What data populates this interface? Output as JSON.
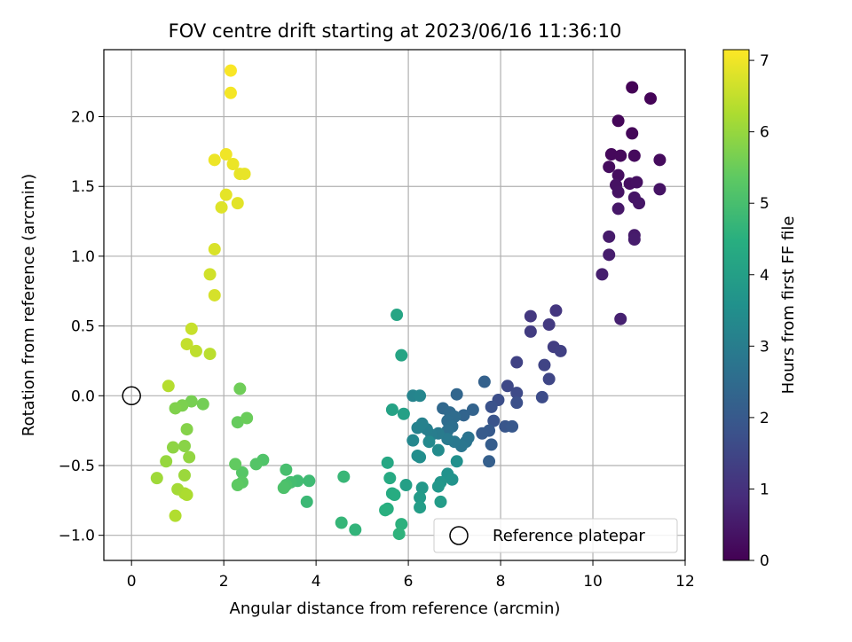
{
  "chart_data": {
    "type": "scatter",
    "title": "FOV centre drift starting at 2023/06/16 11:36:10",
    "xlabel": "Angular distance from reference (arcmin)",
    "ylabel": "Rotation from reference (arcmin)",
    "xlim": [
      -0.6,
      12.0
    ],
    "ylim": [
      -1.18,
      2.48
    ],
    "xticks": [
      0,
      2,
      4,
      6,
      8,
      10,
      12
    ],
    "yticks": [
      -1.0,
      -0.5,
      0.0,
      0.5,
      1.0,
      1.5,
      2.0
    ],
    "xtick_labels": [
      "0",
      "2",
      "4",
      "6",
      "8",
      "10",
      "12"
    ],
    "ytick_labels": [
      "−1.0",
      "−0.5",
      "0.0",
      "0.5",
      "1.0",
      "1.5",
      "2.0"
    ],
    "grid": true,
    "colormap": "viridis",
    "colorbar": {
      "label": "Hours from first FF file",
      "min": 0,
      "max": 7.15,
      "ticks": [
        0,
        1,
        2,
        3,
        4,
        5,
        6,
        7
      ],
      "tick_labels": [
        "0",
        "1",
        "2",
        "3",
        "4",
        "5",
        "6",
        "7"
      ]
    },
    "legend": {
      "position": "lower-right",
      "entries": [
        "Reference platepar"
      ]
    },
    "reference_point": {
      "x": 0,
      "y": 0
    },
    "points": [
      {
        "x": 10.85,
        "y": 2.21,
        "h": 0.05
      },
      {
        "x": 11.25,
        "y": 2.13,
        "h": 0.07
      },
      {
        "x": 10.55,
        "y": 1.97,
        "h": 0.1
      },
      {
        "x": 10.85,
        "y": 1.88,
        "h": 0.12
      },
      {
        "x": 10.4,
        "y": 1.73,
        "h": 0.15
      },
      {
        "x": 10.6,
        "y": 1.72,
        "h": 0.17
      },
      {
        "x": 10.9,
        "y": 1.72,
        "h": 0.18
      },
      {
        "x": 11.45,
        "y": 1.69,
        "h": 0.2
      },
      {
        "x": 10.35,
        "y": 1.64,
        "h": 0.22
      },
      {
        "x": 10.55,
        "y": 1.58,
        "h": 0.25
      },
      {
        "x": 10.8,
        "y": 1.52,
        "h": 0.27
      },
      {
        "x": 10.95,
        "y": 1.53,
        "h": 0.3
      },
      {
        "x": 10.5,
        "y": 1.51,
        "h": 0.32
      },
      {
        "x": 10.55,
        "y": 1.46,
        "h": 0.35
      },
      {
        "x": 11.45,
        "y": 1.48,
        "h": 0.37
      },
      {
        "x": 10.9,
        "y": 1.42,
        "h": 0.4
      },
      {
        "x": 11.0,
        "y": 1.38,
        "h": 0.42
      },
      {
        "x": 10.55,
        "y": 1.34,
        "h": 0.45
      },
      {
        "x": 10.9,
        "y": 1.15,
        "h": 0.5
      },
      {
        "x": 10.35,
        "y": 1.14,
        "h": 0.52
      },
      {
        "x": 10.9,
        "y": 1.12,
        "h": 0.55
      },
      {
        "x": 10.35,
        "y": 1.01,
        "h": 0.57
      },
      {
        "x": 10.2,
        "y": 0.87,
        "h": 0.6
      },
      {
        "x": 10.6,
        "y": 0.55,
        "h": 0.65
      },
      {
        "x": 9.2,
        "y": 0.61,
        "h": 1.1
      },
      {
        "x": 8.65,
        "y": 0.57,
        "h": 1.15
      },
      {
        "x": 9.05,
        "y": 0.51,
        "h": 1.2
      },
      {
        "x": 8.65,
        "y": 0.46,
        "h": 1.25
      },
      {
        "x": 9.15,
        "y": 0.35,
        "h": 1.3
      },
      {
        "x": 9.3,
        "y": 0.32,
        "h": 1.35
      },
      {
        "x": 8.35,
        "y": 0.24,
        "h": 1.4
      },
      {
        "x": 8.95,
        "y": 0.22,
        "h": 1.45
      },
      {
        "x": 9.05,
        "y": 0.12,
        "h": 1.5
      },
      {
        "x": 8.15,
        "y": 0.07,
        "h": 1.55
      },
      {
        "x": 8.35,
        "y": 0.02,
        "h": 1.6
      },
      {
        "x": 8.9,
        "y": -0.01,
        "h": 1.65
      },
      {
        "x": 7.95,
        "y": -0.03,
        "h": 1.7
      },
      {
        "x": 8.35,
        "y": -0.05,
        "h": 1.75
      },
      {
        "x": 7.8,
        "y": -0.08,
        "h": 1.8
      },
      {
        "x": 7.85,
        "y": -0.18,
        "h": 1.85
      },
      {
        "x": 8.1,
        "y": -0.22,
        "h": 1.9
      },
      {
        "x": 8.25,
        "y": -0.22,
        "h": 1.95
      },
      {
        "x": 7.75,
        "y": -0.25,
        "h": 2.0
      },
      {
        "x": 7.6,
        "y": -0.27,
        "h": 2.05
      },
      {
        "x": 7.8,
        "y": -0.35,
        "h": 2.1
      },
      {
        "x": 7.75,
        "y": -0.47,
        "h": 2.15
      },
      {
        "x": 7.65,
        "y": 0.1,
        "h": 2.2
      },
      {
        "x": 7.4,
        "y": -0.1,
        "h": 2.25
      },
      {
        "x": 7.2,
        "y": -0.14,
        "h": 2.3
      },
      {
        "x": 7.05,
        "y": 0.01,
        "h": 2.35
      },
      {
        "x": 6.75,
        "y": -0.09,
        "h": 2.4
      },
      {
        "x": 6.9,
        "y": -0.12,
        "h": 2.45
      },
      {
        "x": 7.0,
        "y": -0.15,
        "h": 2.5
      },
      {
        "x": 6.85,
        "y": -0.18,
        "h": 2.55
      },
      {
        "x": 6.95,
        "y": -0.22,
        "h": 2.6
      },
      {
        "x": 6.85,
        "y": -0.25,
        "h": 2.65
      },
      {
        "x": 7.3,
        "y": -0.3,
        "h": 2.7
      },
      {
        "x": 7.25,
        "y": -0.33,
        "h": 2.75
      },
      {
        "x": 7.15,
        "y": -0.36,
        "h": 2.8
      },
      {
        "x": 7.0,
        "y": -0.33,
        "h": 2.85
      },
      {
        "x": 6.85,
        "y": -0.31,
        "h": 2.9
      },
      {
        "x": 6.65,
        "y": -0.27,
        "h": 2.95
      },
      {
        "x": 6.5,
        "y": -0.28,
        "h": 3.0
      },
      {
        "x": 6.4,
        "y": -0.24,
        "h": 3.05
      },
      {
        "x": 6.3,
        "y": -0.2,
        "h": 3.1
      },
      {
        "x": 6.2,
        "y": -0.23,
        "h": 3.15
      },
      {
        "x": 6.1,
        "y": 0.0,
        "h": 3.2
      },
      {
        "x": 6.25,
        "y": 0.0,
        "h": 3.25
      },
      {
        "x": 6.1,
        "y": -0.32,
        "h": 3.3
      },
      {
        "x": 6.45,
        "y": -0.33,
        "h": 3.35
      },
      {
        "x": 6.65,
        "y": -0.39,
        "h": 3.4
      },
      {
        "x": 6.2,
        "y": -0.43,
        "h": 3.45
      },
      {
        "x": 6.25,
        "y": -0.44,
        "h": 3.5
      },
      {
        "x": 7.05,
        "y": -0.47,
        "h": 3.55
      },
      {
        "x": 6.85,
        "y": -0.56,
        "h": 3.6
      },
      {
        "x": 6.95,
        "y": -0.6,
        "h": 3.65
      },
      {
        "x": 6.7,
        "y": -0.62,
        "h": 3.7
      },
      {
        "x": 6.65,
        "y": -0.65,
        "h": 3.75
      },
      {
        "x": 6.3,
        "y": -0.66,
        "h": 3.8
      },
      {
        "x": 6.25,
        "y": -0.73,
        "h": 3.85
      },
      {
        "x": 6.7,
        "y": -0.76,
        "h": 3.9
      },
      {
        "x": 6.25,
        "y": -0.8,
        "h": 3.95
      },
      {
        "x": 5.95,
        "y": -0.64,
        "h": 4.0
      },
      {
        "x": 5.9,
        "y": -0.13,
        "h": 4.05
      },
      {
        "x": 5.65,
        "y": -0.1,
        "h": 4.1
      },
      {
        "x": 5.85,
        "y": 0.29,
        "h": 4.15
      },
      {
        "x": 5.75,
        "y": 0.58,
        "h": 4.2
      },
      {
        "x": 5.55,
        "y": -0.48,
        "h": 4.25
      },
      {
        "x": 5.6,
        "y": -0.59,
        "h": 4.3
      },
      {
        "x": 5.65,
        "y": -0.7,
        "h": 4.35
      },
      {
        "x": 5.7,
        "y": -0.71,
        "h": 4.4
      },
      {
        "x": 5.55,
        "y": -0.81,
        "h": 4.45
      },
      {
        "x": 5.5,
        "y": -0.82,
        "h": 4.5
      },
      {
        "x": 5.85,
        "y": -0.92,
        "h": 4.55
      },
      {
        "x": 5.8,
        "y": -0.99,
        "h": 4.6
      },
      {
        "x": 4.85,
        "y": -0.96,
        "h": 4.65
      },
      {
        "x": 4.55,
        "y": -0.91,
        "h": 4.7
      },
      {
        "x": 4.6,
        "y": -0.58,
        "h": 4.75
      },
      {
        "x": 3.8,
        "y": -0.76,
        "h": 4.8
      },
      {
        "x": 3.85,
        "y": -0.61,
        "h": 4.85
      },
      {
        "x": 3.6,
        "y": -0.61,
        "h": 4.9
      },
      {
        "x": 3.45,
        "y": -0.62,
        "h": 4.95
      },
      {
        "x": 3.35,
        "y": -0.53,
        "h": 5.0
      },
      {
        "x": 3.35,
        "y": -0.64,
        "h": 5.05
      },
      {
        "x": 3.3,
        "y": -0.66,
        "h": 5.1
      },
      {
        "x": 2.85,
        "y": -0.46,
        "h": 5.15
      },
      {
        "x": 2.7,
        "y": -0.49,
        "h": 5.2
      },
      {
        "x": 2.4,
        "y": -0.55,
        "h": 5.25
      },
      {
        "x": 2.4,
        "y": -0.62,
        "h": 5.3
      },
      {
        "x": 2.3,
        "y": -0.64,
        "h": 5.35
      },
      {
        "x": 2.25,
        "y": -0.49,
        "h": 5.4
      },
      {
        "x": 2.3,
        "y": -0.19,
        "h": 5.45
      },
      {
        "x": 2.5,
        "y": -0.16,
        "h": 5.5
      },
      {
        "x": 2.35,
        "y": 0.05,
        "h": 5.55
      },
      {
        "x": 1.55,
        "y": -0.06,
        "h": 5.6
      },
      {
        "x": 1.3,
        "y": -0.04,
        "h": 5.65
      },
      {
        "x": 1.1,
        "y": -0.07,
        "h": 5.7
      },
      {
        "x": 0.95,
        "y": -0.09,
        "h": 5.75
      },
      {
        "x": 1.2,
        "y": -0.24,
        "h": 5.8
      },
      {
        "x": 1.15,
        "y": -0.36,
        "h": 5.85
      },
      {
        "x": 0.9,
        "y": -0.37,
        "h": 5.9
      },
      {
        "x": 1.25,
        "y": -0.44,
        "h": 5.95
      },
      {
        "x": 0.75,
        "y": -0.47,
        "h": 6.0
      },
      {
        "x": 1.15,
        "y": -0.57,
        "h": 6.05
      },
      {
        "x": 0.55,
        "y": -0.59,
        "h": 6.1
      },
      {
        "x": 1.0,
        "y": -0.67,
        "h": 6.15
      },
      {
        "x": 1.15,
        "y": -0.7,
        "h": 6.2
      },
      {
        "x": 1.2,
        "y": -0.71,
        "h": 6.25
      },
      {
        "x": 0.95,
        "y": -0.86,
        "h": 6.3
      },
      {
        "x": 0.8,
        "y": 0.07,
        "h": 6.35
      },
      {
        "x": 1.7,
        "y": 0.3,
        "h": 6.4
      },
      {
        "x": 1.4,
        "y": 0.32,
        "h": 6.45
      },
      {
        "x": 1.2,
        "y": 0.37,
        "h": 6.5
      },
      {
        "x": 1.3,
        "y": 0.48,
        "h": 6.55
      },
      {
        "x": 1.7,
        "y": 0.87,
        "h": 6.65
      },
      {
        "x": 1.8,
        "y": 0.72,
        "h": 6.7
      },
      {
        "x": 1.8,
        "y": 1.05,
        "h": 6.75
      },
      {
        "x": 1.95,
        "y": 1.35,
        "h": 6.8
      },
      {
        "x": 2.3,
        "y": 1.38,
        "h": 6.85
      },
      {
        "x": 2.05,
        "y": 1.44,
        "h": 6.88
      },
      {
        "x": 2.35,
        "y": 1.59,
        "h": 6.9
      },
      {
        "x": 2.45,
        "y": 1.59,
        "h": 6.92
      },
      {
        "x": 2.2,
        "y": 1.66,
        "h": 6.95
      },
      {
        "x": 1.8,
        "y": 1.69,
        "h": 6.97
      },
      {
        "x": 2.05,
        "y": 1.73,
        "h": 7.0
      },
      {
        "x": 2.15,
        "y": 2.17,
        "h": 7.05
      },
      {
        "x": 2.15,
        "y": 2.33,
        "h": 7.1
      }
    ]
  }
}
